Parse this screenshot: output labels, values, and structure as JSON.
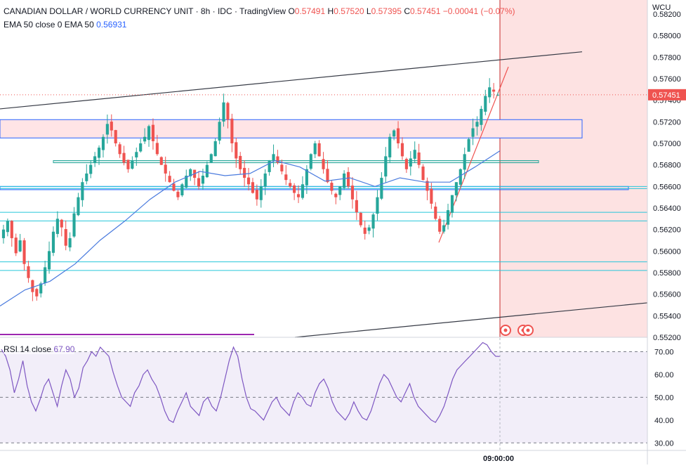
{
  "header": {
    "symbol": "CANADIAN DOLLAR / WORLD CURRENCY UNIT · 8h · IDC · TradingView",
    "o_label": "O",
    "o": "0.57491",
    "h_label": "H",
    "h": "0.57520",
    "l_label": "L",
    "l": "0.57395",
    "c_label": "C",
    "c": "0.57451",
    "change": "−0.00041 (−0.07%)",
    "ema_label": "EMA 50 close 0 EMA 50",
    "ema_value": "0.56931",
    "rsi_label": "RSI 14 close",
    "rsi_value": "67.90"
  },
  "axis": {
    "currency": "WCU",
    "time_label": "09:00:00",
    "current_price": "0.57451"
  },
  "colors": {
    "up": "#26a69a",
    "down": "#ef5350",
    "ema": "#4a7bde",
    "rsi": "#7e57c2",
    "zone_fill": "#ffe4e6",
    "future_fill": "#fde2e2"
  },
  "chart_data": [
    {
      "type": "candlestick",
      "title": "CANADIAN DOLLAR / WORLD CURRENCY UNIT",
      "timeframe": "8h",
      "ylim": [
        0.552,
        0.582
      ],
      "y_ticks": [
        "0.55200",
        "0.55400",
        "0.55600",
        "0.55800",
        "0.56000",
        "0.56200",
        "0.56400",
        "0.56600",
        "0.56800",
        "0.57000",
        "0.57200",
        "0.57400",
        "0.57600",
        "0.57800",
        "0.58000",
        "0.58200"
      ],
      "x_tick": "09:00:00",
      "last_close": 0.57451,
      "close_path": [
        0.562,
        0.5628,
        0.5612,
        0.5598,
        0.561,
        0.5588,
        0.5575,
        0.5562,
        0.5558,
        0.557,
        0.5585,
        0.56,
        0.5618,
        0.563,
        0.5622,
        0.5605,
        0.5612,
        0.5635,
        0.565,
        0.5664,
        0.5672,
        0.568,
        0.5688,
        0.5696,
        0.5706,
        0.5718,
        0.5712,
        0.57,
        0.569,
        0.5682,
        0.5676,
        0.5684,
        0.5692,
        0.57,
        0.5706,
        0.5716,
        0.5702,
        0.569,
        0.568,
        0.5672,
        0.5664,
        0.5656,
        0.565,
        0.5662,
        0.567,
        0.5676,
        0.5668,
        0.566,
        0.567,
        0.568,
        0.569,
        0.5702,
        0.572,
        0.5738,
        0.5722,
        0.57,
        0.5686,
        0.5676,
        0.5668,
        0.5662,
        0.5654,
        0.5648,
        0.566,
        0.5672,
        0.5684,
        0.569,
        0.5682,
        0.5674,
        0.5666,
        0.566,
        0.5654,
        0.565,
        0.5662,
        0.5676,
        0.569,
        0.57,
        0.5688,
        0.5676,
        0.5664,
        0.5656,
        0.565,
        0.566,
        0.5672,
        0.566,
        0.5648,
        0.5636,
        0.5624,
        0.5616,
        0.5622,
        0.5634,
        0.565,
        0.5668,
        0.5688,
        0.5706,
        0.5712,
        0.57,
        0.5688,
        0.5676,
        0.5686,
        0.5694,
        0.568,
        0.5666,
        0.5656,
        0.5644,
        0.563,
        0.5618,
        0.5624,
        0.5638,
        0.5652,
        0.5664,
        0.5676,
        0.569,
        0.5704,
        0.5714,
        0.572,
        0.5732,
        0.5744,
        0.5752,
        0.5748,
        0.57451
      ],
      "ema": [
        {
          "x": 0.0,
          "y": 0.5549
        },
        {
          "x": 0.05,
          "y": 0.5564
        },
        {
          "x": 0.1,
          "y": 0.5572
        },
        {
          "x": 0.15,
          "y": 0.5588
        },
        {
          "x": 0.2,
          "y": 0.561
        },
        {
          "x": 0.25,
          "y": 0.5628
        },
        {
          "x": 0.3,
          "y": 0.5648
        },
        {
          "x": 0.35,
          "y": 0.5664
        },
        {
          "x": 0.4,
          "y": 0.5674
        },
        {
          "x": 0.45,
          "y": 0.567
        },
        {
          "x": 0.5,
          "y": 0.5672
        },
        {
          "x": 0.55,
          "y": 0.5684
        },
        {
          "x": 0.6,
          "y": 0.5678
        },
        {
          "x": 0.65,
          "y": 0.5665
        },
        {
          "x": 0.7,
          "y": 0.5668
        },
        {
          "x": 0.75,
          "y": 0.566
        },
        {
          "x": 0.8,
          "y": 0.5668
        },
        {
          "x": 0.85,
          "y": 0.5664
        },
        {
          "x": 0.9,
          "y": 0.5664
        },
        {
          "x": 0.95,
          "y": 0.5678
        },
        {
          "x": 1.0,
          "y": 0.56931
        }
      ],
      "horizontal_levels": [
        0.566,
        0.5658,
        0.5636,
        0.5628,
        0.559,
        0.5582
      ],
      "zones": [
        {
          "name": "resistance-zone",
          "low": 0.5705,
          "high": 0.5722
        },
        {
          "name": "mid-zone",
          "low": 0.5682,
          "high": 0.5684
        },
        {
          "name": "support-line",
          "low": 0.5657,
          "high": 0.566
        }
      ],
      "channel_upper": [
        [
          0.0,
          0.5732
        ],
        [
          1.0,
          0.5785
        ]
      ],
      "channel_lower": [
        [
          0.45,
          0.552
        ],
        [
          1.0,
          0.5552
        ]
      ],
      "trend_line": [
        [
          0.0,
          0.5608
        ],
        [
          1.0,
          0.5771
        ]
      ]
    },
    {
      "type": "line",
      "title": "RSI 14 close",
      "ylim": [
        27,
        76
      ],
      "y_ticks": [
        "30.00",
        "40.00",
        "50.00",
        "60.00",
        "70.00"
      ],
      "levels": [
        70,
        50,
        30
      ],
      "last": 67.9,
      "values": [
        71,
        68,
        62,
        52,
        58,
        66,
        55,
        48,
        44,
        49,
        55,
        58,
        52,
        46,
        55,
        62,
        58,
        50,
        54,
        63,
        66,
        70,
        68,
        72,
        70,
        68,
        61,
        55,
        50,
        48,
        46,
        52,
        55,
        60,
        62,
        58,
        55,
        50,
        44,
        40,
        39,
        44,
        48,
        52,
        46,
        44,
        42,
        48,
        50,
        46,
        44,
        50,
        58,
        66,
        72,
        68,
        58,
        50,
        45,
        44,
        42,
        40,
        44,
        48,
        50,
        46,
        44,
        42,
        48,
        52,
        50,
        47,
        46,
        52,
        56,
        58,
        54,
        48,
        44,
        42,
        40,
        43,
        48,
        44,
        41,
        40,
        44,
        50,
        56,
        60,
        58,
        54,
        50,
        48,
        52,
        56,
        50,
        46,
        44,
        42,
        40,
        39,
        42,
        46,
        52,
        58,
        62,
        64,
        66,
        68,
        70,
        72,
        74,
        73,
        70,
        68,
        67.9
      ]
    }
  ]
}
